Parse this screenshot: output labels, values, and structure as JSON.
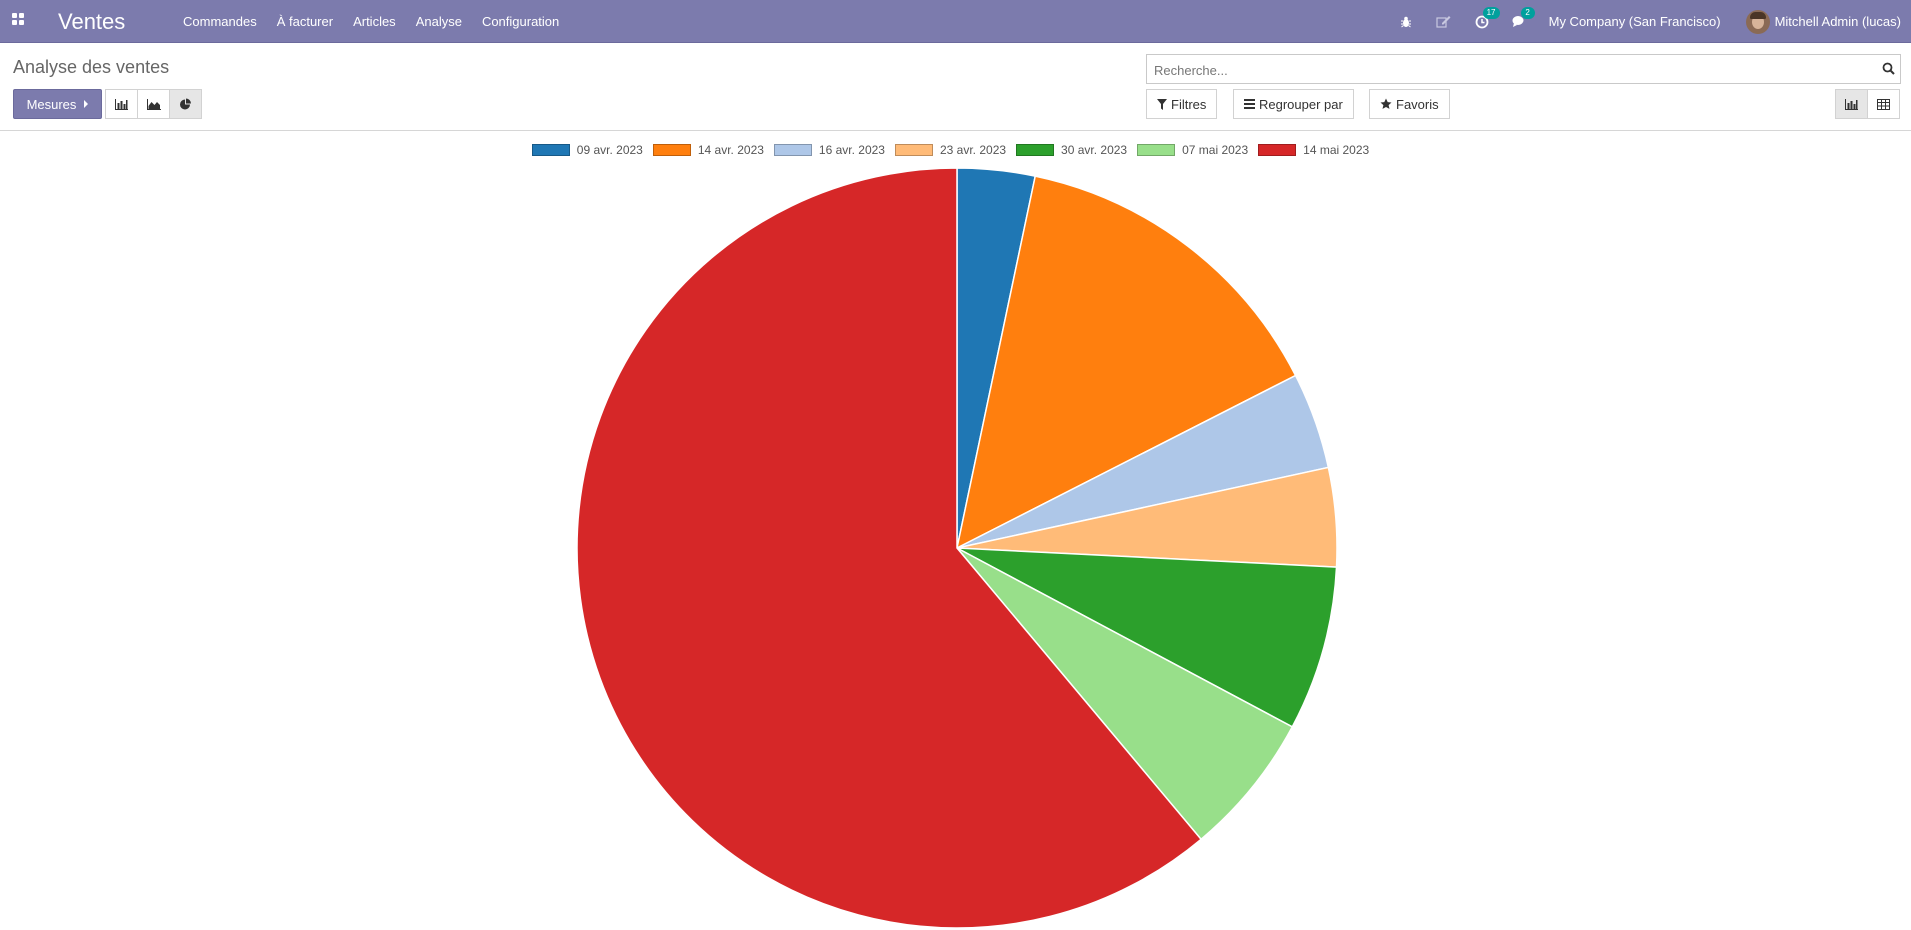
{
  "navbar": {
    "brand": "Ventes",
    "menu": [
      "Commandes",
      "À facturer",
      "Articles",
      "Analyse",
      "Configuration"
    ],
    "activities_count": "17",
    "messages_count": "2",
    "company": "My Company (San Francisco)",
    "user": "Mitchell Admin (lucas)"
  },
  "control_panel": {
    "breadcrumb": "Analyse des ventes",
    "measures_label": "Mesures",
    "search_placeholder": "Recherche...",
    "filters_label": "Filtres",
    "groupby_label": "Regrouper par",
    "favorites_label": "Favoris",
    "active_chart_mode": "pie",
    "active_view": "graph"
  },
  "chart_data": {
    "type": "pie",
    "title": "",
    "categories": [
      "09 avr. 2023",
      "14 avr. 2023",
      "16 avr. 2023",
      "23 avr. 2023",
      "30 avr. 2023",
      "07 mai 2023",
      "14 mai 2023"
    ],
    "values": [
      3.3,
      14.2,
      4.1,
      4.2,
      7.0,
      6.1,
      61.1
    ],
    "colors": [
      "#1f77b4",
      "#ff7f0e",
      "#aec7e8",
      "#ffbb78",
      "#2ca02c",
      "#98df8a",
      "#d62728"
    ],
    "legend": "top"
  }
}
